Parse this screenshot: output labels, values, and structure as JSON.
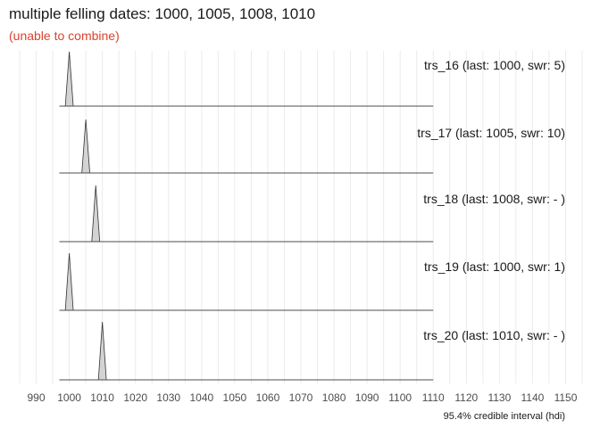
{
  "title": "multiple felling dates: 1000, 1005, 1008, 1010",
  "subtitle": "(unable to combine)",
  "chart_data": {
    "type": "area",
    "title": "multiple felling dates: 1000, 1005, 1008, 1010",
    "subtitle": "(unable to combine)",
    "xlabel": "95.4% credible interval (hdi)",
    "xlim": [
      985,
      1155
    ],
    "xticks": [
      990,
      1000,
      1010,
      1020,
      1030,
      1040,
      1050,
      1060,
      1070,
      1080,
      1090,
      1100,
      1110,
      1120,
      1130,
      1140,
      1150
    ],
    "grid": true,
    "series": [
      {
        "name": "trs_16",
        "label": "trs_16 (last: 1000, swr: 5)",
        "last": 1000,
        "x_start": 997,
        "x_end": 1110,
        "peak": 1000,
        "halfwidth": 1.2
      },
      {
        "name": "trs_17",
        "label": "trs_17 (last: 1005, swr: 10)",
        "last": 1005,
        "x_start": 997,
        "x_end": 1110,
        "peak": 1005,
        "halfwidth": 1.2
      },
      {
        "name": "trs_18",
        "label": "trs_18 (last: 1008, swr: - )",
        "last": 1008,
        "x_start": 997,
        "x_end": 1110,
        "peak": 1008,
        "halfwidth": 1.2
      },
      {
        "name": "trs_19",
        "label": "trs_19 (last: 1000, swr: 1)",
        "last": 1000,
        "x_start": 997,
        "x_end": 1110,
        "peak": 1000,
        "halfwidth": 1.2
      },
      {
        "name": "trs_20",
        "label": "trs_20 (last: 1010, swr: - )",
        "last": 1010,
        "x_start": 997,
        "x_end": 1110,
        "peak": 1010,
        "halfwidth": 1.2
      }
    ]
  }
}
